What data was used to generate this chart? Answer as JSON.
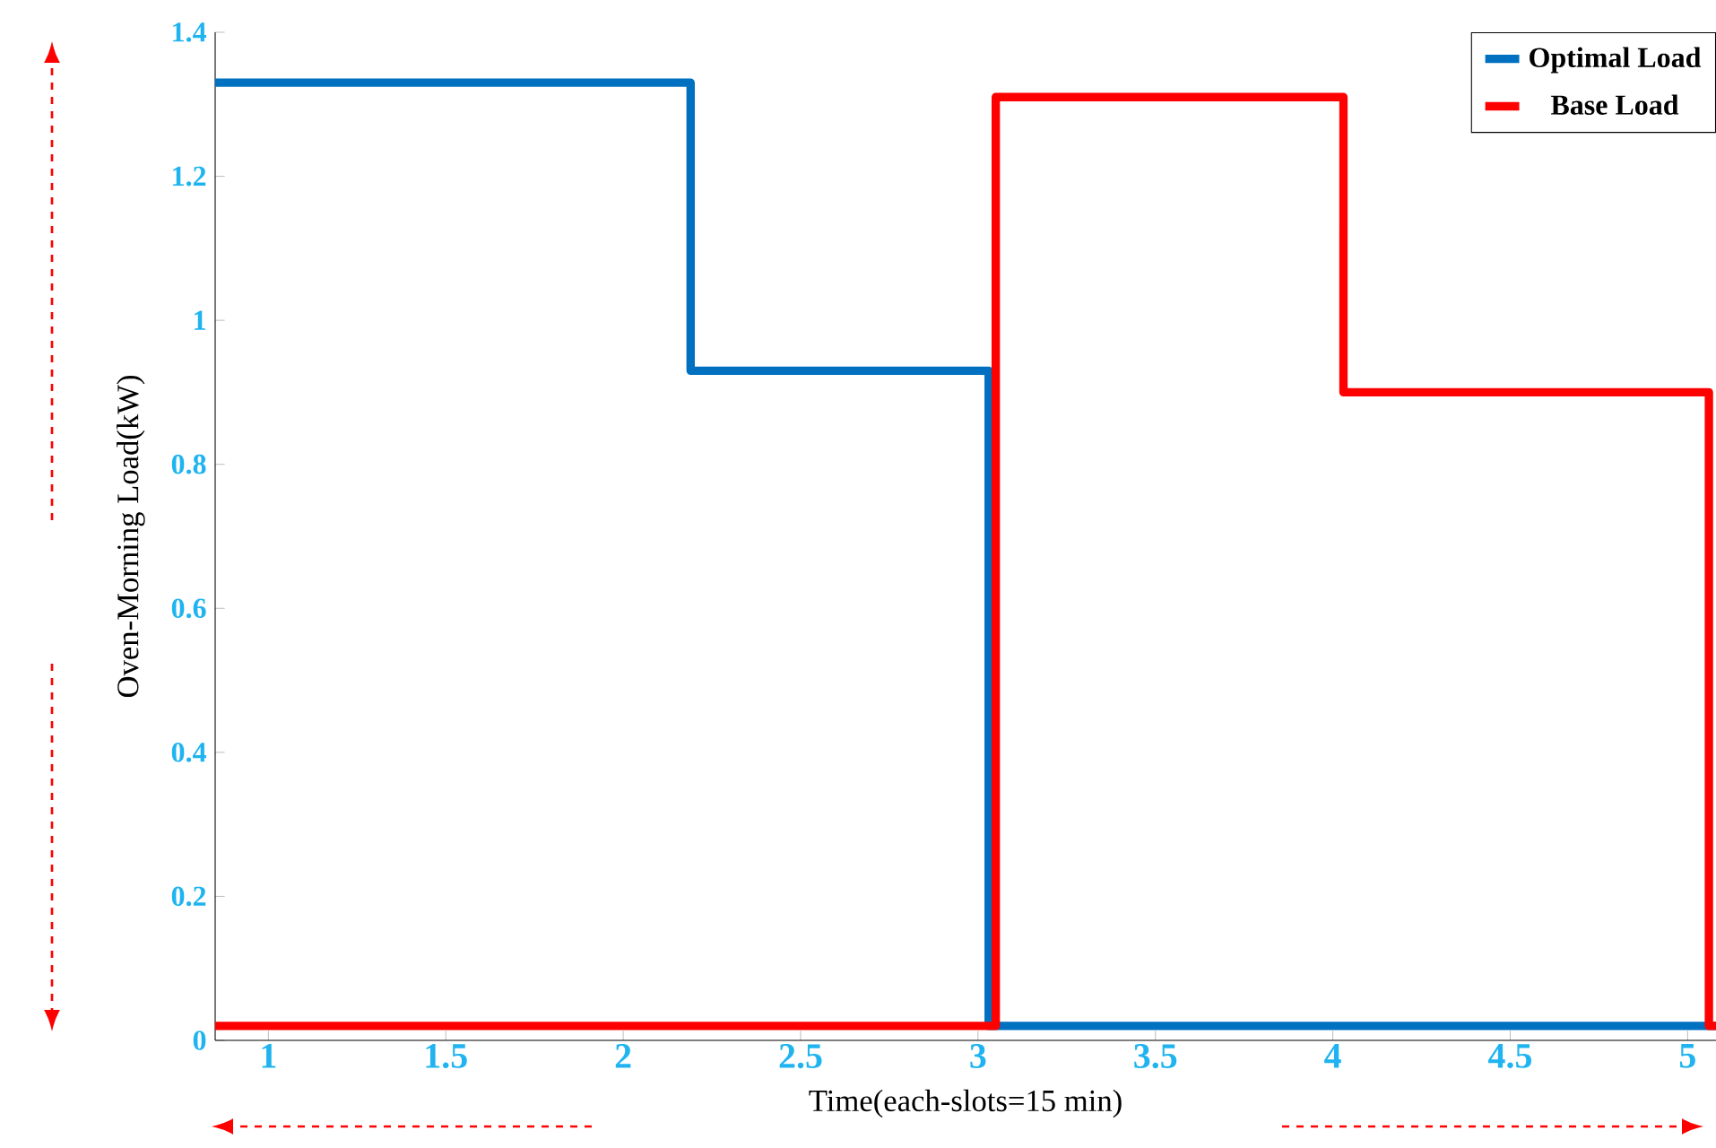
{
  "chart_data": {
    "type": "step",
    "xlabel": "Time(each-slots=15 min)",
    "ylabel": "Oven-Morning Load(kW)",
    "xlim": [
      0.85,
      5.08
    ],
    "xticks": [
      1,
      1.5,
      2,
      2.5,
      3,
      3.5,
      4,
      4.5,
      5
    ],
    "ylim": [
      0,
      1.4
    ],
    "yticks": [
      0,
      0.2,
      0.4,
      0.6,
      0.8,
      1,
      1.2,
      1.4
    ],
    "series": [
      {
        "name": "Optimal Load",
        "color": "#0070c0",
        "x": [
          0.85,
          2.19,
          3.03,
          5.08
        ],
        "values": [
          1.33,
          0.93,
          0.02,
          0.02
        ]
      },
      {
        "name": "Base Load",
        "color": "#ff0000",
        "x": [
          0.85,
          3.05,
          4.03,
          5.06,
          5.08
        ],
        "values": [
          0.02,
          1.31,
          0.9,
          0.02,
          0.02
        ]
      }
    ],
    "legend": "top right",
    "grid": false
  }
}
